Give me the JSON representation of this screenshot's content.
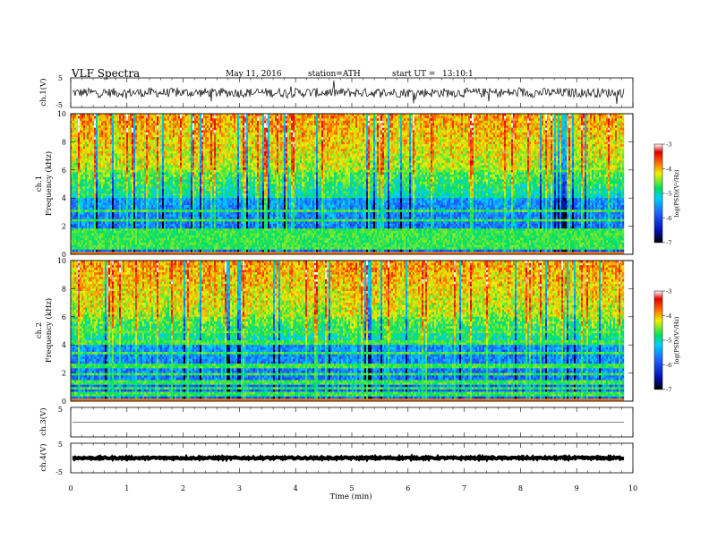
{
  "header": {
    "title": "VLF Spectra",
    "date": "May 11, 2016",
    "station": "station=ATH",
    "start": "start UT =",
    "start_time": "13:10:1"
  },
  "chart_data": [
    {
      "type": "line",
      "name": "ch1-waveform",
      "ylabel": "ch.1(V)",
      "ylim": [
        -5,
        5
      ],
      "ytick_labels": [
        "5",
        "-5"
      ],
      "xlim": [
        0,
        10
      ],
      "baseline": 0,
      "noise_amplitude": 0.8
    },
    {
      "type": "heatmap",
      "name": "ch1-spectrogram",
      "ylabel_top": "ch.1",
      "ylabel": "Frequency (kHz)",
      "ylim": [
        0,
        10
      ],
      "ytick_labels": [
        "0",
        "2",
        "4",
        "6",
        "8",
        "10"
      ],
      "xlim": [
        0,
        9.85
      ],
      "colorbar": {
        "label": "log(PSD)(V²/Hz)",
        "range": [
          -7,
          -3
        ],
        "tick_labels": [
          "-3",
          "-4",
          "-5",
          "-6",
          "-7"
        ]
      }
    },
    {
      "type": "heatmap",
      "name": "ch2-spectrogram",
      "ylabel_top": "ch.2",
      "ylabel": "Frequency (kHz)",
      "ylim": [
        0,
        10
      ],
      "ytick_labels": [
        "0",
        "2",
        "4",
        "6",
        "8",
        "10"
      ],
      "xlim": [
        0,
        9.85
      ],
      "colorbar": {
        "label": "log(PSD)(V²/Hz)",
        "range": [
          -7,
          -3
        ],
        "tick_labels": [
          "-3",
          "-4",
          "-5",
          "-6",
          "-7"
        ]
      }
    },
    {
      "type": "line",
      "name": "ch3-waveform",
      "ylabel": "ch.3(V)",
      "ylim": [
        -5,
        5
      ],
      "ytick_labels": [
        "5"
      ],
      "xlim": [
        0,
        10
      ],
      "baseline": 0,
      "noise_amplitude": 0.02
    },
    {
      "type": "line",
      "name": "ch4-waveform",
      "ylabel": "ch.4(V)",
      "ylim": [
        -5,
        5
      ],
      "ytick_labels": [
        "5",
        "-5"
      ],
      "xlim": [
        0,
        10
      ],
      "baseline": 0,
      "noise_amplitude": 0.3
    }
  ],
  "xaxis": {
    "label": "Time (min)",
    "tick_labels": [
      "0",
      "1",
      "2",
      "3",
      "4",
      "5",
      "6",
      "7",
      "8",
      "9",
      "10"
    ],
    "range": [
      0,
      10
    ]
  }
}
